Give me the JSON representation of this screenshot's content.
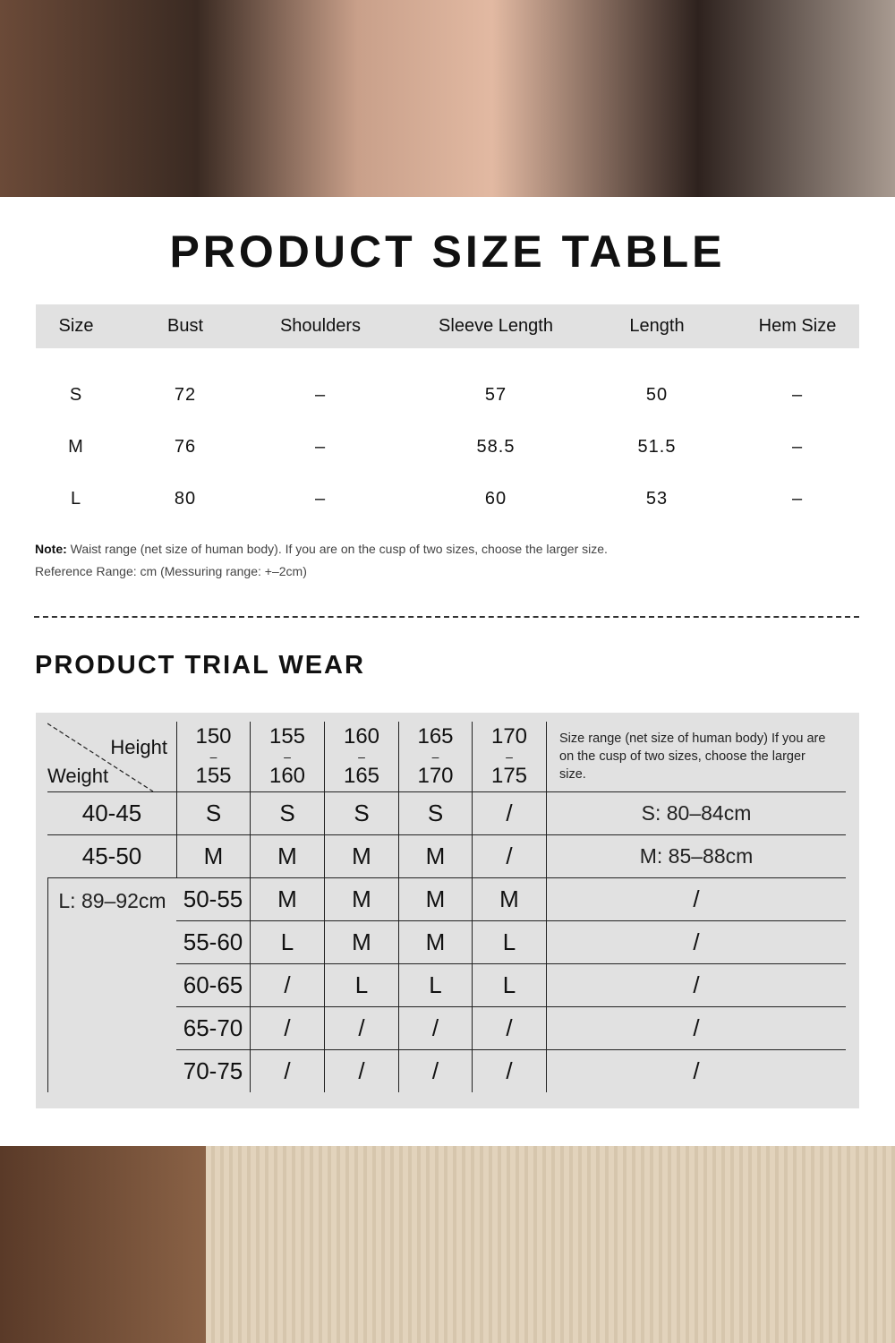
{
  "size_table": {
    "title": "PRODUCT SIZE TABLE",
    "headers": [
      "Size",
      "Bust",
      "Shoulders",
      "Sleeve Length",
      "Length",
      "Hem Size"
    ],
    "rows": [
      [
        "S",
        "72",
        "–",
        "57",
        "50",
        "–"
      ],
      [
        "M",
        "76",
        "–",
        "58.5",
        "51.5",
        "–"
      ],
      [
        "L",
        "80",
        "–",
        "60",
        "53",
        "–"
      ]
    ],
    "note_label": "Note:",
    "note_text": "Waist range (net size of human body). If you are on the cusp of two sizes, choose the larger size.",
    "reference": "Reference Range: cm (Messuring range: +–2cm)"
  },
  "trial_wear": {
    "title": "PRODUCT TRIAL WEAR",
    "corner_height": "Height",
    "corner_weight": "Weight",
    "heights": [
      [
        "150",
        "155"
      ],
      [
        "155",
        "160"
      ],
      [
        "160",
        "165"
      ],
      [
        "165",
        "170"
      ],
      [
        "170",
        "175"
      ]
    ],
    "dash": "–",
    "info": "Size range (net size of human body) If you are on the cusp of two sizes, choose the larger size.",
    "rows": [
      {
        "weight": "40-45",
        "sizes": [
          "S",
          "S",
          "S",
          "S",
          "/"
        ]
      },
      {
        "weight": "45-50",
        "sizes": [
          "M",
          "M",
          "M",
          "M",
          "/"
        ]
      },
      {
        "weight": "50-55",
        "sizes": [
          "M",
          "M",
          "M",
          "M",
          "/"
        ]
      },
      {
        "weight": "55-60",
        "sizes": [
          "L",
          "M",
          "M",
          "L",
          "/"
        ]
      },
      {
        "weight": "60-65",
        "sizes": [
          "/",
          "L",
          "L",
          "L",
          "/"
        ]
      },
      {
        "weight": "65-70",
        "sizes": [
          "/",
          "/",
          "/",
          "/",
          "/"
        ]
      },
      {
        "weight": "70-75",
        "sizes": [
          "/",
          "/",
          "/",
          "/",
          "/"
        ]
      }
    ],
    "ranges": [
      "S: 80–84cm",
      "M: 85–88cm",
      "L: 89–92cm"
    ]
  }
}
